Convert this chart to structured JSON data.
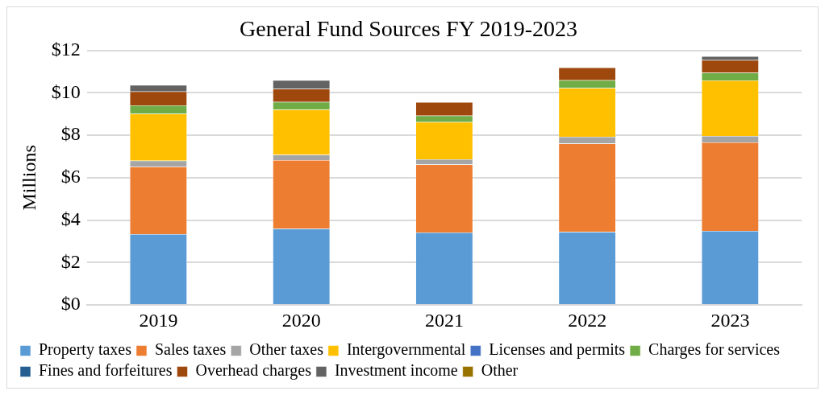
{
  "chart_data": {
    "type": "bar",
    "title": "General Fund Sources FY 2019-2023",
    "ylabel": "Millions",
    "categories": [
      "2019",
      "2020",
      "2021",
      "2022",
      "2023"
    ],
    "stacked": true,
    "ylim": [
      0,
      12
    ],
    "yticks": [
      {
        "value": 0,
        "label": "$0"
      },
      {
        "value": 2,
        "label": "$2"
      },
      {
        "value": 4,
        "label": "$4"
      },
      {
        "value": 6,
        "label": "$6"
      },
      {
        "value": 8,
        "label": "$8"
      },
      {
        "value": 10,
        "label": "$10"
      },
      {
        "value": 12,
        "label": "$12"
      }
    ],
    "grid": "y",
    "legend": "bottom",
    "series": [
      {
        "name": "Property taxes",
        "color": "#5b9bd5",
        "values": [
          3.34,
          3.6,
          3.42,
          3.45,
          3.49
        ]
      },
      {
        "name": "Sales taxes",
        "color": "#ed7d31",
        "values": [
          3.18,
          3.23,
          3.2,
          4.16,
          4.17
        ]
      },
      {
        "name": "Other taxes",
        "color": "#a5a5a5",
        "values": [
          0.28,
          0.25,
          0.25,
          0.32,
          0.31
        ]
      },
      {
        "name": "Intergovernmental",
        "color": "#ffc000",
        "values": [
          2.21,
          2.13,
          1.75,
          2.29,
          2.61
        ]
      },
      {
        "name": "Licenses and permits",
        "color": "#4472c4",
        "values": [
          0,
          0,
          0,
          0,
          0
        ]
      },
      {
        "name": "Charges for services",
        "color": "#70ad47",
        "values": [
          0.4,
          0.36,
          0.3,
          0.37,
          0.36
        ]
      },
      {
        "name": "Fines and forfeitures",
        "color": "#255e91",
        "values": [
          0,
          0,
          0,
          0,
          0
        ]
      },
      {
        "name": "Overhead charges",
        "color": "#9e480e",
        "values": [
          0.65,
          0.61,
          0.64,
          0.6,
          0.6
        ]
      },
      {
        "name": "Investment income",
        "color": "#636363",
        "values": [
          0.3,
          0.41,
          0,
          null,
          0.18
        ]
      },
      {
        "name": "Other",
        "color": "#997300",
        "values": [
          0,
          0,
          0,
          0,
          0
        ]
      }
    ]
  }
}
